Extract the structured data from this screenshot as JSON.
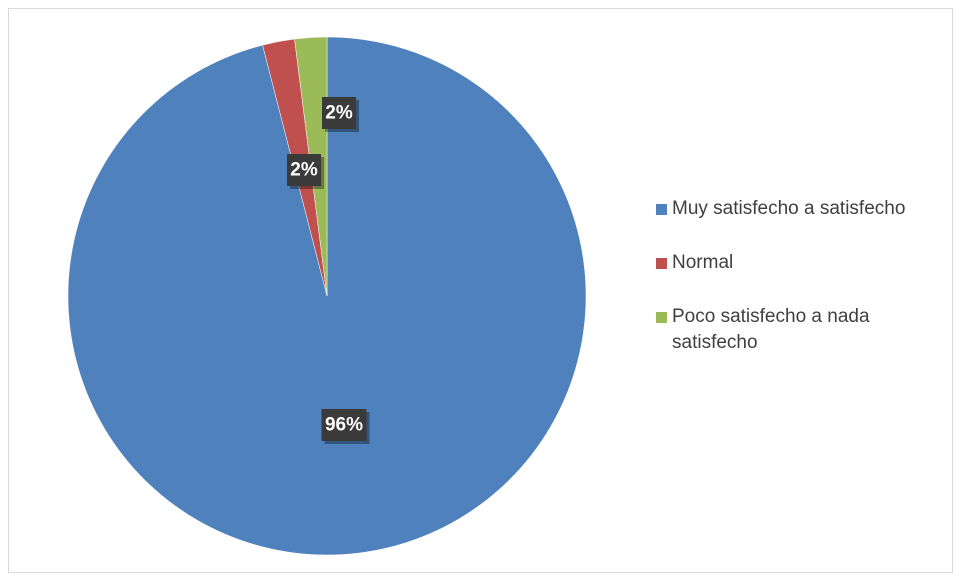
{
  "chart_data": {
    "type": "pie",
    "slices": [
      {
        "label": "Muy satisfecho a satisfecho",
        "value": 96,
        "display": "96%",
        "color": "#4f81bd"
      },
      {
        "label": "Normal",
        "value": 2,
        "display": "2%",
        "color": "#c0504d"
      },
      {
        "label": "Poco satisfecho a nada satisfecho",
        "value": 2,
        "display": "2%",
        "color": "#9bbb59"
      }
    ],
    "start_angle_deg": 0,
    "direction": "clockwise",
    "legend_position": "right",
    "data_label_style": "dark-box-white-bold"
  }
}
